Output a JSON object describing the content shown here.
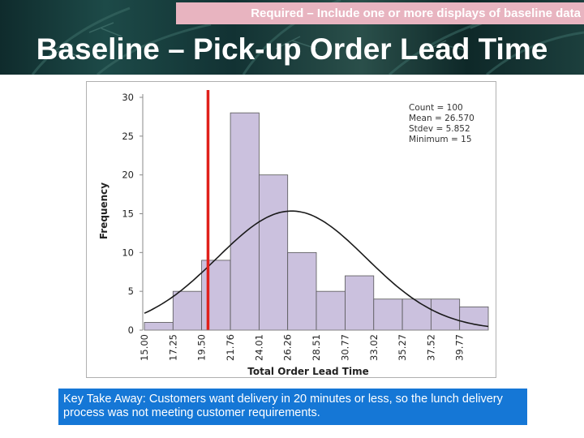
{
  "header": {
    "banner_text": "Required – Include one or more displays of baseline data",
    "title": "Baseline – Pick-up Order Lead Time"
  },
  "chart_data": {
    "type": "bar",
    "xlabel": "Total Order Lead Time",
    "ylabel": "Frequency",
    "ylim": [
      0,
      30
    ],
    "yticks": [
      0,
      5,
      10,
      15,
      20,
      25,
      30
    ],
    "bin_edges": [
      15.0,
      17.25,
      19.5,
      21.76,
      24.01,
      26.26,
      28.51,
      30.77,
      33.02,
      35.27,
      37.52,
      39.77
    ],
    "bin_edge_labels": [
      "15.00",
      "17.25",
      "19.50",
      "21.76",
      "24.01",
      "26.26",
      "28.51",
      "30.77",
      "33.02",
      "35.27",
      "37.52",
      "39.77"
    ],
    "bins_top_edge": 42.02,
    "values": [
      1,
      5,
      9,
      28,
      20,
      10,
      5,
      7,
      4,
      4,
      4,
      3
    ],
    "normal_curve": {
      "mean": 26.57,
      "stdev": 5.852,
      "count": 100
    },
    "threshold_line": {
      "x": 20,
      "color": "#e0201b"
    },
    "stats": [
      "Count = 100",
      "Mean = 26.570",
      "Stdev = 5.852",
      "Minimum = 15"
    ],
    "stats_position": "top-right",
    "grid": false,
    "colors": {
      "bar_fill": "#cbc1de",
      "bar_stroke": "#555555",
      "curve": "#1a1a1a"
    }
  },
  "takeaway": {
    "text": "Key Take Away: Customers want delivery in 20 minutes or less, so the lunch delivery process was not meeting customer requirements."
  }
}
